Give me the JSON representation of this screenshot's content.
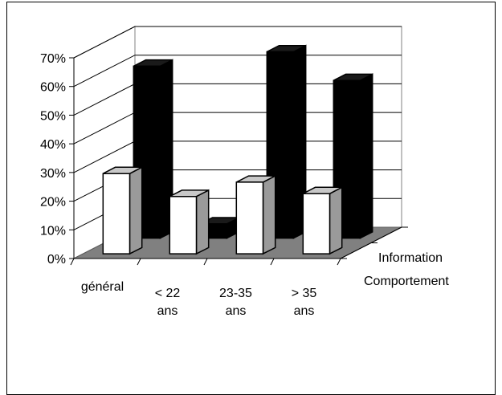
{
  "chart_data": {
    "type": "bar",
    "subtype": "3d-clustered",
    "categories": [
      [
        "général"
      ],
      [
        "< 22",
        "ans"
      ],
      [
        "23-35",
        "ans"
      ],
      [
        "> 35",
        "ans"
      ]
    ],
    "series": [
      {
        "name": "Information",
        "values": [
          60,
          5,
          65,
          55
        ],
        "color": "#000000"
      },
      {
        "name": "Comportement",
        "values": [
          28,
          20,
          25,
          21
        ],
        "color": "#ffffff"
      }
    ],
    "ylim": [
      0,
      70
    ],
    "yticks": [
      "0%",
      "10%",
      "20%",
      "30%",
      "40%",
      "50%",
      "60%",
      "70%"
    ],
    "grid": true,
    "floor_color": "#808080",
    "legend": "depth-axis labels on right"
  }
}
